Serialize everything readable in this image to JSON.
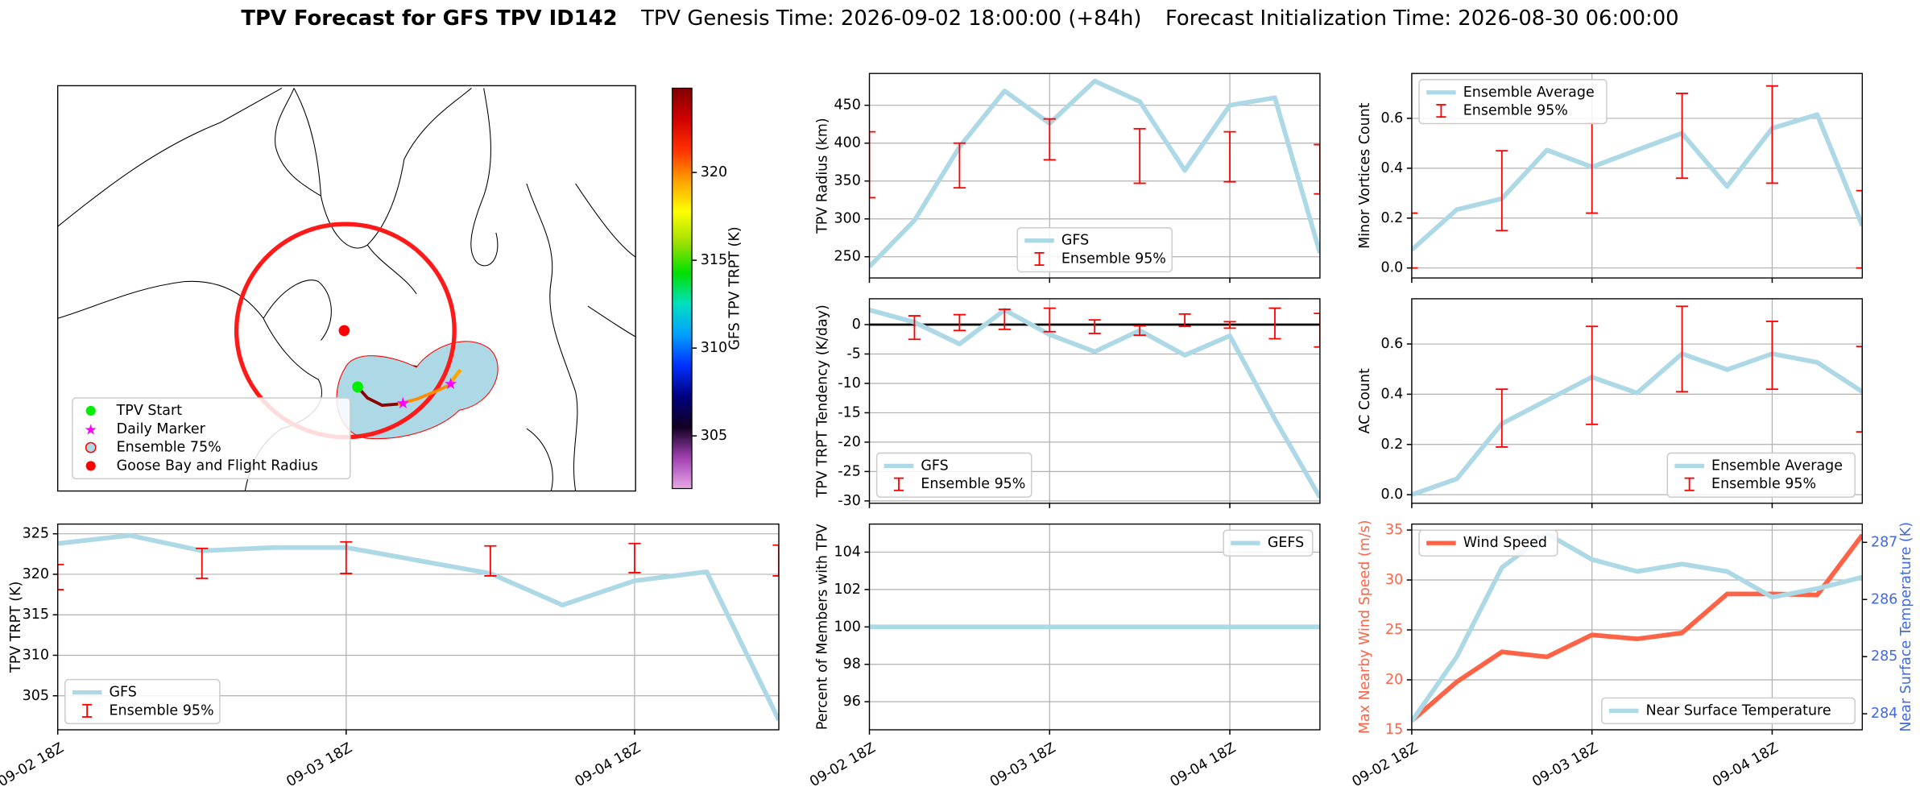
{
  "title": [
    "TPV Forecast for GFS TPV ID142",
    "TPV Genesis Time: 2026-09-02 18:00:00 (+84h)",
    "Forecast Initialization Time: 2026-08-30 06:00:00"
  ],
  "chart_data": [
    {
      "type": "map",
      "legend": [
        {
          "name": "TPV Start",
          "color": "#00ee00",
          "marker": "circle"
        },
        {
          "name": "Daily Marker",
          "color": "#ff00ff",
          "marker": "star"
        },
        {
          "name": "Ensemble 75%",
          "color": "#add8e6",
          "edge": "#ff0000",
          "marker": "circle"
        },
        {
          "name": "Goose Bay and Flight Radius",
          "color": "#ff0000",
          "marker": "circle"
        }
      ],
      "colorbar": {
        "label": "GFS TPV TRPT (K)",
        "lim": [
          302,
          324.8
        ],
        "ticks": [
          305,
          310,
          315,
          320
        ],
        "colors": [
          "#e8a8e8",
          "#a040b0",
          "#100020",
          "#000080",
          "#0030ff",
          "#00a0ff",
          "#00e0c0",
          "#00e000",
          "#a0e000",
          "#ffff00",
          "#ffa000",
          "#ff3000",
          "#d00000",
          "#800000"
        ]
      }
    },
    {
      "type": "line",
      "ylabel": "TPV Radius (km)",
      "x": [
        "09-02 18Z",
        "09-03 00Z",
        "09-03 06Z",
        "09-03 12Z",
        "09-03 18Z",
        "09-04 00Z",
        "09-04 06Z",
        "09-04 12Z",
        "09-04 18Z",
        "09-05 00Z",
        "09-05 06Z"
      ],
      "xlim": [
        "09-02 18Z",
        "09-05 06Z"
      ],
      "xticks": [
        "09-02 18Z",
        "09-03 18Z",
        "09-04 18Z"
      ],
      "xticklabels": false,
      "ylim": [
        222,
        492
      ],
      "yticks": [
        250,
        300,
        350,
        400,
        450
      ],
      "grid": true,
      "legend": "lower center",
      "series": [
        {
          "name": "GFS",
          "color": "#add8e6",
          "values": [
            237,
            298,
            395,
            469,
            426,
            482,
            455,
            364,
            450,
            460,
            255
          ]
        }
      ],
      "errorbars": {
        "name": "Ensemble 95%",
        "color": "#ff0000",
        "low": [
          328,
          null,
          341,
          null,
          378,
          null,
          347,
          null,
          349,
          null,
          333
        ],
        "high": [
          415,
          null,
          400,
          null,
          432,
          null,
          419,
          null,
          415,
          null,
          398
        ]
      }
    },
    {
      "type": "line",
      "ylabel": "TPV TRPT Tendency (K/day)",
      "x": [
        "09-02 18Z",
        "09-03 00Z",
        "09-03 06Z",
        "09-03 12Z",
        "09-03 18Z",
        "09-04 00Z",
        "09-04 06Z",
        "09-04 12Z",
        "09-04 18Z",
        "09-05 00Z",
        "09-05 06Z"
      ],
      "xlim": [
        "09-02 18Z",
        "09-05 06Z"
      ],
      "xticks": [
        "09-02 18Z",
        "09-03 18Z",
        "09-04 18Z"
      ],
      "xticklabels": false,
      "ylim": [
        -30.4,
        4.4
      ],
      "yticks": [
        -30,
        -25,
        -20,
        -15,
        -10,
        -5,
        0
      ],
      "grid": true,
      "legend": "lower left",
      "hline": 0,
      "series": [
        {
          "name": "GFS",
          "color": "#add8e6",
          "values": [
            2.5,
            0.4,
            -3.3,
            2.5,
            -1.7,
            -4.6,
            -1.0,
            -5.2,
            -1.9,
            -16.1,
            -29.4
          ]
        }
      ],
      "errorbars": {
        "name": "Ensemble 95%",
        "color": "#ff0000",
        "low": [
          null,
          -2.5,
          -1.0,
          -0.8,
          -1.2,
          -1.5,
          -1.8,
          -0.3,
          -0.6,
          -2.4,
          -3.8
        ],
        "high": [
          null,
          1.5,
          1.7,
          2.6,
          2.8,
          0.8,
          -0.2,
          1.8,
          0.5,
          2.8,
          1.9
        ]
      }
    },
    {
      "type": "line",
      "ylabel": "Percent of Members with TPV",
      "x": [
        "09-02 18Z",
        "09-03 00Z",
        "09-03 06Z",
        "09-03 12Z",
        "09-03 18Z",
        "09-04 00Z",
        "09-04 06Z",
        "09-04 12Z",
        "09-04 18Z",
        "09-05 00Z",
        "09-05 06Z"
      ],
      "xlim": [
        "09-02 18Z",
        "09-05 06Z"
      ],
      "xticks": [
        "09-02 18Z",
        "09-03 18Z",
        "09-04 18Z"
      ],
      "xticklabels": true,
      "ylim": [
        94.5,
        105.5
      ],
      "yticks": [
        96,
        98,
        100,
        102,
        104
      ],
      "grid": true,
      "legend": "upper right",
      "series": [
        {
          "name": "GEFS",
          "color": "#add8e6",
          "values": [
            100,
            100,
            100,
            100,
            100,
            100,
            100,
            100,
            100,
            100,
            100
          ]
        }
      ]
    },
    {
      "type": "line",
      "ylabel": "Minor Vortices Count",
      "x": [
        "09-02 18Z",
        "09-03 00Z",
        "09-03 06Z",
        "09-03 12Z",
        "09-03 18Z",
        "09-04 00Z",
        "09-04 06Z",
        "09-04 12Z",
        "09-04 18Z",
        "09-05 00Z",
        "09-05 06Z"
      ],
      "xlim": [
        "09-02 18Z",
        "09-05 06Z"
      ],
      "xticks": [
        "09-02 18Z",
        "09-03 18Z",
        "09-04 18Z"
      ],
      "xticklabels": false,
      "ylim": [
        -0.04,
        0.78
      ],
      "yticks": [
        {
          "value": 0,
          "label": "0.0"
        },
        0.2,
        0.4,
        0.6
      ],
      "grid": true,
      "legend": "upper left",
      "series": [
        {
          "name": "Ensemble Average",
          "color": "#add8e6",
          "values": [
            0.073,
            0.234,
            0.278,
            0.473,
            0.405,
            0.473,
            0.54,
            0.327,
            0.56,
            0.615,
            0.17
          ]
        }
      ],
      "errorbars": {
        "name": "Ensemble 95%",
        "color": "#ff0000",
        "low": [
          0,
          null,
          0.15,
          null,
          0.22,
          null,
          0.36,
          null,
          0.34,
          null,
          0
        ],
        "high": [
          0.22,
          null,
          0.47,
          null,
          0.58,
          null,
          0.7,
          null,
          0.73,
          null,
          0.31
        ]
      }
    },
    {
      "type": "line",
      "ylabel": "AC Count",
      "x": [
        "09-02 18Z",
        "09-03 00Z",
        "09-03 06Z",
        "09-03 12Z",
        "09-03 18Z",
        "09-04 00Z",
        "09-04 06Z",
        "09-04 12Z",
        "09-04 18Z",
        "09-05 00Z",
        "09-05 06Z"
      ],
      "xlim": [
        "09-02 18Z",
        "09-05 06Z"
      ],
      "xticks": [
        "09-02 18Z",
        "09-03 18Z",
        "09-04 18Z"
      ],
      "xticklabels": false,
      "ylim": [
        -0.034,
        0.78
      ],
      "yticks": [
        {
          "value": 0,
          "label": "0.0"
        },
        0.2,
        0.4,
        0.6
      ],
      "grid": true,
      "legend": "lower right",
      "series": [
        {
          "name": "Ensemble Average",
          "color": "#add8e6",
          "values": [
            0.0,
            0.063,
            0.283,
            0.376,
            0.468,
            0.405,
            0.561,
            0.498,
            0.561,
            0.527,
            0.41
          ]
        }
      ],
      "errorbars": {
        "name": "Ensemble 95%",
        "color": "#ff0000",
        "low": [
          null,
          null,
          0.19,
          null,
          0.28,
          null,
          0.41,
          null,
          0.42,
          null,
          0.25
        ],
        "high": [
          null,
          null,
          0.42,
          null,
          0.67,
          null,
          0.75,
          null,
          0.69,
          null,
          0.59
        ]
      }
    },
    {
      "type": "line",
      "ylabel": "TPV TRPT (K)",
      "x": [
        "09-02 18Z",
        "09-03 00Z",
        "09-03 06Z",
        "09-03 12Z",
        "09-03 18Z",
        "09-04 00Z",
        "09-04 06Z",
        "09-04 12Z",
        "09-04 18Z",
        "09-05 00Z",
        "09-05 06Z"
      ],
      "xlim": [
        "09-02 18Z",
        "09-05 06Z"
      ],
      "xticks": [
        "09-02 18Z",
        "09-03 18Z",
        "09-04 18Z"
      ],
      "xticklabels": true,
      "ylim": [
        300.8,
        326.2
      ],
      "yticks": [
        305,
        310,
        315,
        320,
        325
      ],
      "grid": true,
      "legend": "lower left",
      "series": [
        {
          "name": "GFS",
          "color": "#add8e6",
          "values": [
            323.8,
            324.8,
            322.9,
            323.3,
            323.3,
            321.7,
            320.1,
            316.2,
            319.2,
            320.3,
            302.0
          ]
        }
      ],
      "errorbars": {
        "name": "Ensemble 95%",
        "color": "#ff0000",
        "low": [
          318.1,
          null,
          319.5,
          null,
          320.1,
          null,
          319.8,
          null,
          320.2,
          null,
          319.8
        ],
        "high": [
          321.2,
          null,
          323.2,
          null,
          324.0,
          null,
          323.5,
          null,
          323.8,
          null,
          323.6
        ]
      }
    },
    {
      "type": "line",
      "ylabel": "Max Nearby Wind Speed (m/s)",
      "ylabel_color": "#ff6347",
      "y2label": "Near Surface Temperature (K)",
      "y2label_color": "#4169e1",
      "x": [
        "09-02 18Z",
        "09-03 00Z",
        "09-03 06Z",
        "09-03 12Z",
        "09-03 18Z",
        "09-04 00Z",
        "09-04 06Z",
        "09-04 12Z",
        "09-04 18Z",
        "09-05 00Z",
        "09-05 06Z"
      ],
      "xlim": [
        "09-02 18Z",
        "09-05 06Z"
      ],
      "xticks": [
        "09-02 18Z",
        "09-03 18Z",
        "09-04 18Z"
      ],
      "xticklabels": true,
      "ylim": [
        15,
        35.6
      ],
      "yticks": [
        15,
        20,
        25,
        30,
        35
      ],
      "y2lim": [
        283.72,
        287.32
      ],
      "y2ticks": [
        284,
        285,
        286,
        287
      ],
      "grid": true,
      "legend": "upper left",
      "y2legend": "lower right",
      "series": [
        {
          "name": "Wind Speed",
          "color": "#ff6347",
          "values": [
            15.9,
            19.8,
            22.8,
            22.3,
            24.5,
            24.1,
            24.7,
            28.6,
            28.6,
            28.5,
            34.5
          ]
        },
        {
          "name": "Near Surface Temperature",
          "color": "#add8e6",
          "axis": "y2",
          "values": [
            283.87,
            285.0,
            286.56,
            287.15,
            286.7,
            286.49,
            286.62,
            286.49,
            286.04,
            286.19,
            286.39
          ]
        }
      ]
    }
  ]
}
